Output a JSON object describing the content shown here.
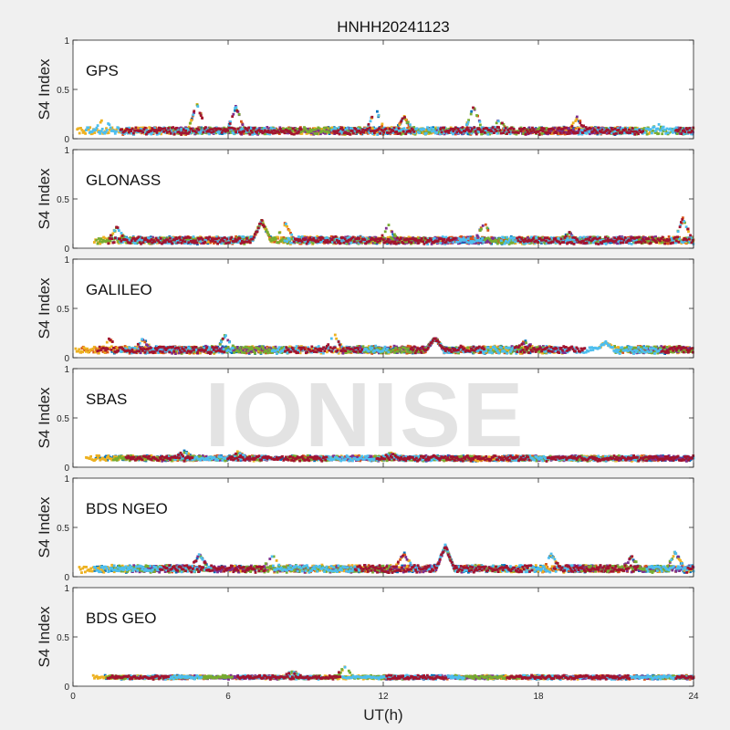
{
  "chart_data": {
    "type": "scatter",
    "title": "HNHH20241123",
    "xlabel": "UT(h)",
    "ylabel": "S4 Index",
    "xlim": [
      0,
      24
    ],
    "ylim": [
      0,
      1
    ],
    "xticks": [
      0,
      6,
      12,
      18,
      24
    ],
    "yticks": [
      0,
      0.5,
      1
    ],
    "ytick_labels": [
      "0",
      "0.5",
      "1"
    ],
    "grid": false,
    "palette": [
      "#0072BD",
      "#D95319",
      "#EDB120",
      "#7E2F8E",
      "#77AC30",
      "#4DBEEE",
      "#A2142F"
    ],
    "panels": [
      {
        "label": "GPS",
        "baseline": 0.08,
        "noise": 0.03,
        "peaks": [
          {
            "x": 1.2,
            "y": 0.22
          },
          {
            "x": 4.8,
            "y": 0.36
          },
          {
            "x": 6.3,
            "y": 0.32
          },
          {
            "x": 11.7,
            "y": 0.31
          },
          {
            "x": 12.8,
            "y": 0.22
          },
          {
            "x": 15.5,
            "y": 0.33
          },
          {
            "x": 16.5,
            "y": 0.19
          },
          {
            "x": 19.5,
            "y": 0.21
          },
          {
            "x": 22.6,
            "y": 0.16
          }
        ]
      },
      {
        "label": "GLONASS",
        "baseline": 0.08,
        "noise": 0.03,
        "peaks": [
          {
            "x": 1.7,
            "y": 0.21
          },
          {
            "x": 7.3,
            "y": 0.28
          },
          {
            "x": 8.2,
            "y": 0.25
          },
          {
            "x": 12.2,
            "y": 0.23
          },
          {
            "x": 15.9,
            "y": 0.26
          },
          {
            "x": 19.2,
            "y": 0.16
          },
          {
            "x": 23.6,
            "y": 0.3
          }
        ]
      },
      {
        "label": "GALILEO",
        "baseline": 0.08,
        "noise": 0.03,
        "peaks": [
          {
            "x": 1.4,
            "y": 0.19
          },
          {
            "x": 2.7,
            "y": 0.19
          },
          {
            "x": 5.9,
            "y": 0.23
          },
          {
            "x": 10.1,
            "y": 0.24
          },
          {
            "x": 14.0,
            "y": 0.2
          },
          {
            "x": 17.5,
            "y": 0.17
          },
          {
            "x": 20.6,
            "y": 0.16
          }
        ]
      },
      {
        "label": "SBAS",
        "baseline": 0.09,
        "noise": 0.02,
        "peaks": [
          {
            "x": 4.3,
            "y": 0.16
          },
          {
            "x": 6.4,
            "y": 0.15
          },
          {
            "x": 12.3,
            "y": 0.14
          }
        ]
      },
      {
        "label": "BDS NGEO",
        "baseline": 0.08,
        "noise": 0.03,
        "peaks": [
          {
            "x": 4.9,
            "y": 0.23
          },
          {
            "x": 7.7,
            "y": 0.22
          },
          {
            "x": 12.8,
            "y": 0.24
          },
          {
            "x": 14.4,
            "y": 0.31
          },
          {
            "x": 18.5,
            "y": 0.22
          },
          {
            "x": 21.6,
            "y": 0.2
          },
          {
            "x": 23.3,
            "y": 0.25
          }
        ]
      },
      {
        "label": "BDS GEO",
        "baseline": 0.09,
        "noise": 0.012,
        "peaks": [
          {
            "x": 10.5,
            "y": 0.19
          },
          {
            "x": 8.5,
            "y": 0.15
          }
        ]
      }
    ]
  },
  "watermark": "IONISE"
}
